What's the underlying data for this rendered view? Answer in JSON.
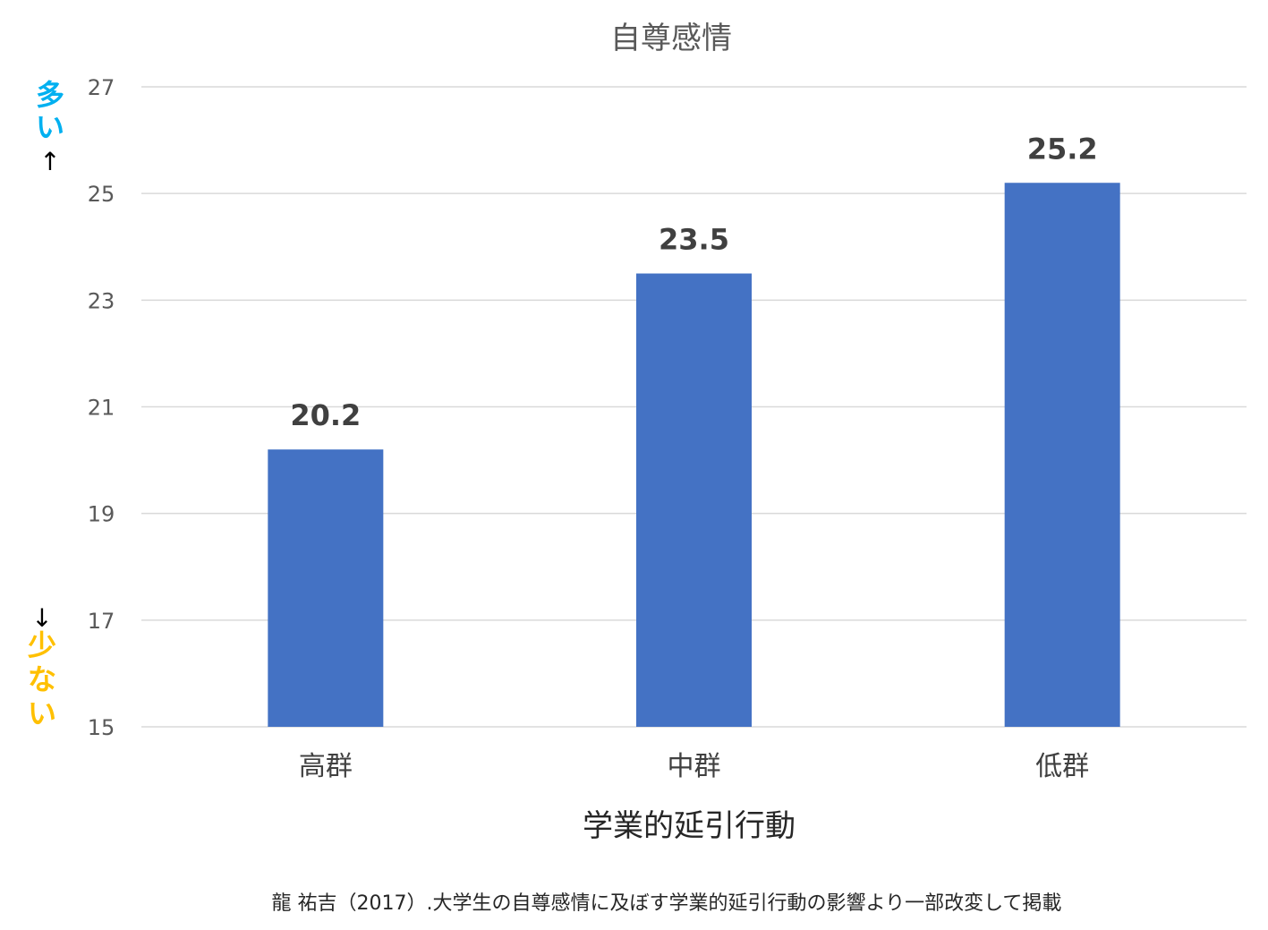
{
  "chart_data": {
    "type": "bar",
    "title": "自尊感情",
    "categories": [
      "高群",
      "中群",
      "低群"
    ],
    "values": [
      20.2,
      23.5,
      25.2
    ],
    "data_labels": [
      "20.2",
      "23.5",
      "25.2"
    ],
    "xlabel": "学業的延引行動",
    "ylabel": "",
    "ylim": [
      15,
      27
    ],
    "yticks": [
      "15",
      "17",
      "19",
      "21",
      "23",
      "25",
      "27"
    ],
    "grid": true,
    "bar_color": "#4472C4",
    "grid_color": "#D9D9D9",
    "annotations": {
      "more": {
        "chars": [
          "多",
          "い"
        ],
        "arrow": "↑",
        "color": "#00B0F0"
      },
      "less": {
        "chars": [
          "少",
          "な",
          "い"
        ],
        "arrow": "↓",
        "color": "#FFC000"
      }
    }
  },
  "source_note": "龍 祐吉（2017）.大学生の自尊感情に及ぼす学業的延引行動の影響より一部改変して掲載"
}
